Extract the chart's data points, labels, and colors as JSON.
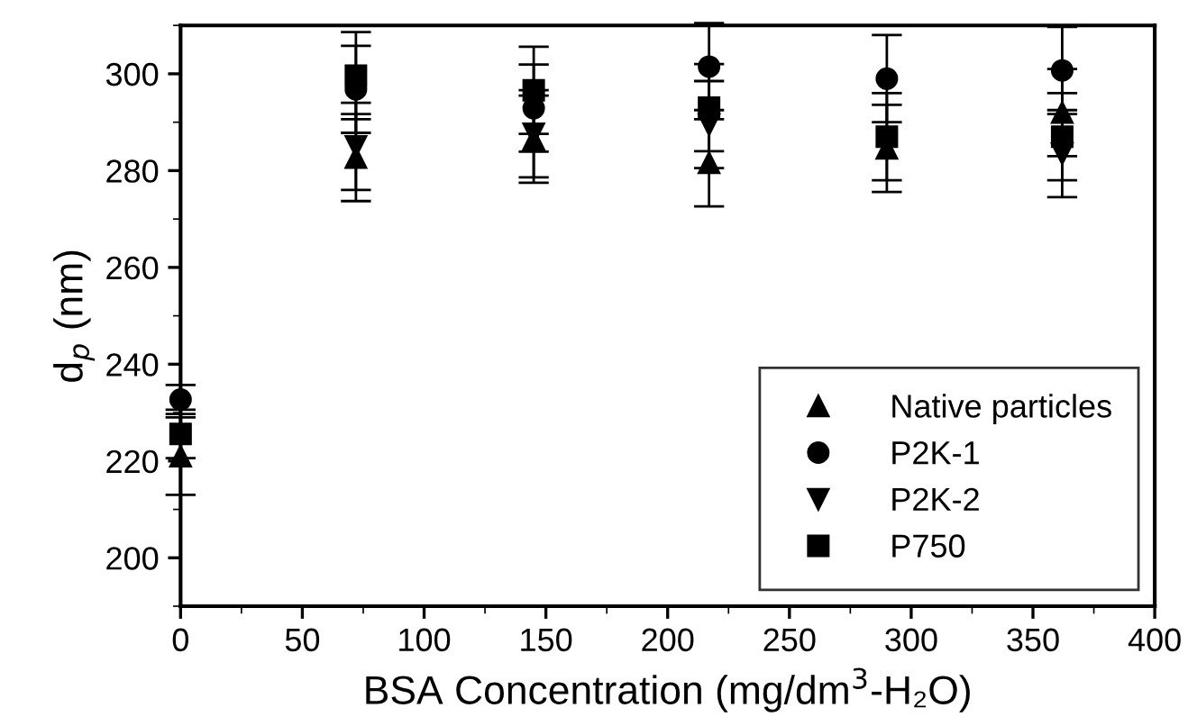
{
  "chart_data": {
    "type": "scatter",
    "xlabel": "BSA Concentration (mg/dm$^{3}$-H₂O)",
    "ylabel": "d$_{p}$ (nm)",
    "x": [
      0,
      72,
      145,
      217,
      290,
      362
    ],
    "series": [
      {
        "name": "Native particles",
        "color": "#000000",
        "marker": "triangle",
        "values": [
          221,
          282.7,
          286.5,
          281.6,
          284.6,
          292
        ],
        "errors": [
          8,
          9,
          9,
          9,
          9,
          9
        ]
      },
      {
        "name": "P2K-1",
        "color": "#000000",
        "marker": "circle",
        "values": [
          232.7,
          296.8,
          292.9,
          301.5,
          299,
          300.7
        ],
        "errors": [
          3,
          9,
          9,
          9,
          9,
          9
        ]
      },
      {
        "name": "P2K-2",
        "color": "#000000",
        "marker": "triangle_down",
        "values": [
          null,
          285,
          287.6,
          289.5,
          null,
          283.5
        ],
        "errors": [
          null,
          9,
          9,
          9,
          null,
          9
        ]
      },
      {
        "name": "P750",
        "color": "#000000",
        "marker": "square",
        "values": [
          225.6,
          299.6,
          296.6,
          293,
          287,
          287
        ],
        "errors": [
          5,
          9,
          9,
          9,
          9,
          9
        ]
      }
    ],
    "xlim": [
      0,
      400
    ],
    "xticks": [
      0,
      50,
      100,
      150,
      200,
      250,
      300,
      350,
      400
    ],
    "ylim": [
      190,
      310
    ],
    "yticks": [
      200,
      220,
      240,
      260,
      280,
      300
    ],
    "grid": false,
    "legend": "bottom right"
  }
}
